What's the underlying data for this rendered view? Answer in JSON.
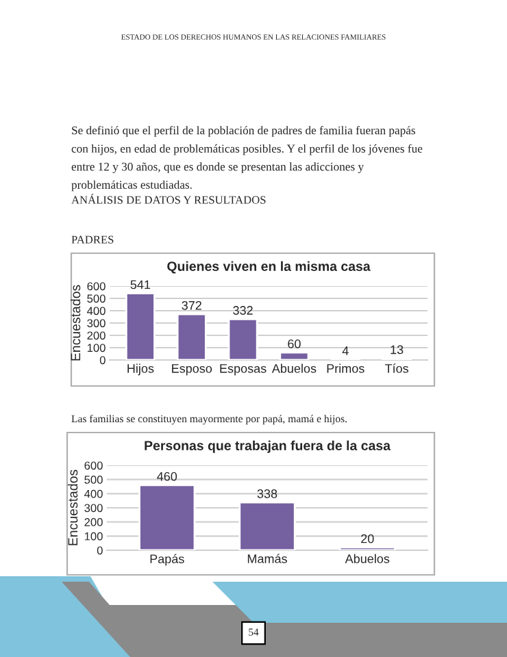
{
  "chart_data": [
    {
      "type": "bar",
      "title": "Quienes viven en la misma casa",
      "ylabel": "Encuestados",
      "categories": [
        "Hijos",
        "Esposo",
        "Esposas",
        "Abuelos",
        "Primos",
        "Tíos"
      ],
      "values": [
        541,
        372,
        332,
        60,
        4,
        13
      ],
      "color": "#7560a0",
      "ylim": [
        0,
        600
      ],
      "yticks": [
        0,
        100,
        200,
        300,
        400,
        500,
        600
      ],
      "grid": "y",
      "data_labels": true,
      "annotations": [
        "ESTADO DE LOS DERECHOS HUMANOS EN LAS RELACIONES FAMILIARES",
        "Se definió que el perfil de la población de padres de familia fueran papás con hijos, en edad de problemáticas posibles. Y el perfil de los jóvenes fue entre 12 y 30 años, que es donde se presentan las adicciones y problemáticas estudiadas.",
        "ANÁLISIS DE DATOS Y RESULTADOS",
        "PADRES",
        "Las familias se constituyen mayormente por papá, mamá e hijos."
      ]
    },
    {
      "type": "bar",
      "title": "Personas que trabajan fuera de la casa",
      "ylabel": "Encuestados",
      "categories": [
        "Papás",
        "Mamás",
        "Abuelos"
      ],
      "values": [
        460,
        338,
        20
      ],
      "color": "#7560a0",
      "ylim": [
        0,
        600
      ],
      "yticks": [
        0,
        100,
        200,
        300,
        400,
        500,
        600
      ],
      "grid": "y",
      "data_labels": true,
      "annotations": [
        "54"
      ]
    }
  ]
}
